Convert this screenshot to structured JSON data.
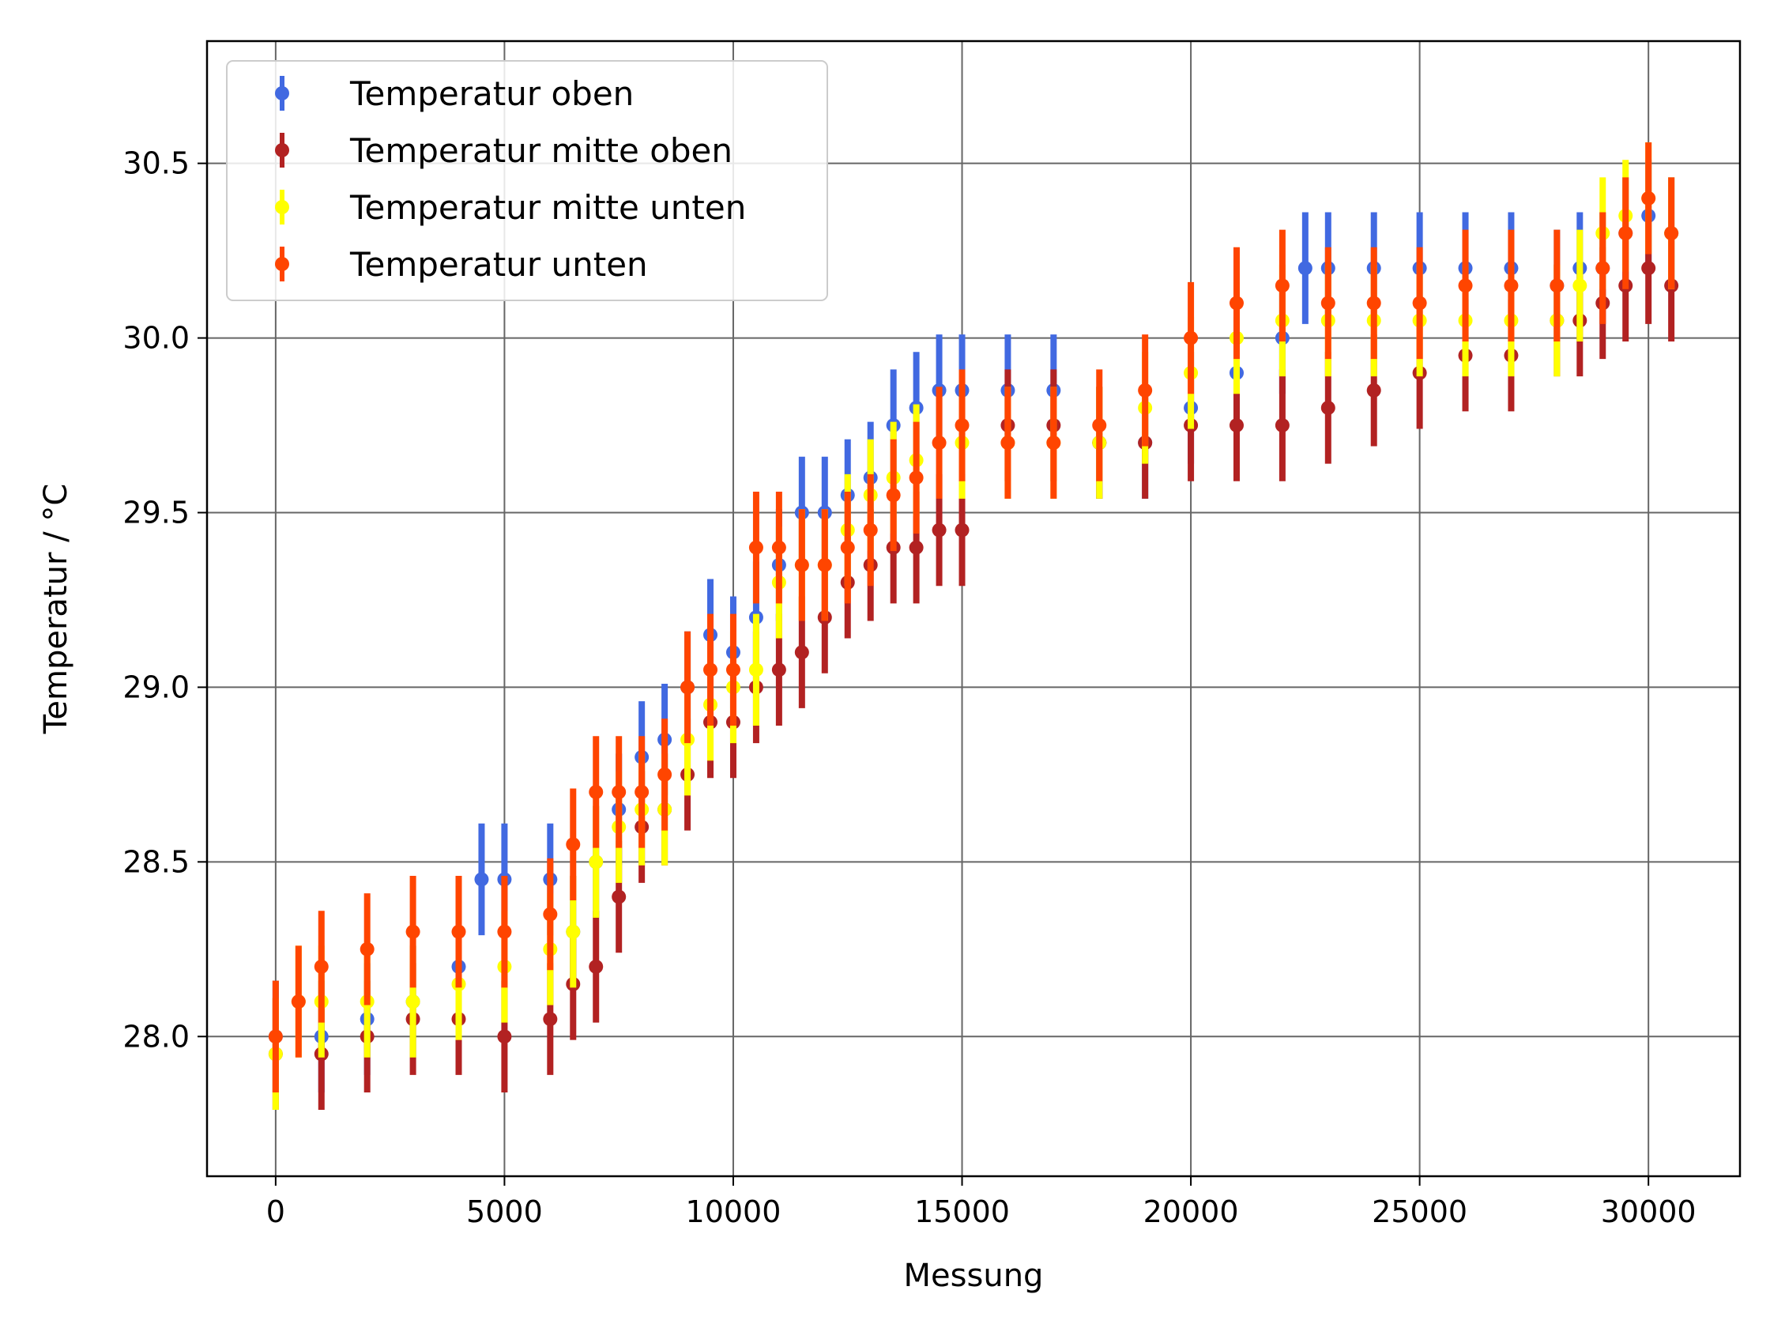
{
  "chart_data": {
    "type": "scatter",
    "title": "",
    "xlabel": "Messung",
    "ylabel": "Temperatur / °C",
    "xlim": [
      -1500,
      32000
    ],
    "ylim": [
      27.6,
      30.85
    ],
    "xticks": [
      0,
      5000,
      10000,
      15000,
      20000,
      25000,
      30000
    ],
    "xtick_labels": [
      "0",
      "5000",
      "10000",
      "15000",
      "20000",
      "25000",
      "30000"
    ],
    "yticks": [
      28.0,
      28.5,
      29.0,
      29.5,
      30.0,
      30.5
    ],
    "ytick_labels": [
      "28.0",
      "28.5",
      "29.0",
      "29.5",
      "30.0",
      "30.5"
    ],
    "grid": true,
    "legend_position": "top-left",
    "error_bar_halfwidth": 0.16,
    "series": [
      {
        "name": "Temperatur oben",
        "color": "#4169e1",
        "x": [
          0,
          1000,
          2000,
          3000,
          4000,
          4500,
          5000,
          6000,
          6500,
          7000,
          7500,
          8000,
          8500,
          9000,
          9500,
          10000,
          10500,
          11000,
          11500,
          12000,
          12500,
          13000,
          13500,
          14000,
          14500,
          15000,
          16000,
          17000,
          18000,
          19000,
          20000,
          21000,
          22000,
          22500,
          23000,
          24000,
          25000,
          26000,
          27000,
          28000,
          28500,
          29000,
          29500,
          30000,
          30500
        ],
        "y": [
          28.0,
          28.0,
          28.05,
          28.1,
          28.2,
          28.45,
          28.45,
          28.45,
          28.3,
          28.5,
          28.65,
          28.8,
          28.85,
          29.0,
          29.15,
          29.1,
          29.2,
          29.35,
          29.5,
          29.5,
          29.55,
          29.6,
          29.75,
          29.8,
          29.85,
          29.85,
          29.85,
          29.85,
          29.7,
          29.7,
          29.8,
          29.9,
          30.0,
          30.2,
          30.2,
          30.2,
          30.2,
          30.2,
          30.2,
          30.15,
          30.2,
          30.2,
          30.3,
          30.35,
          30.3
        ]
      },
      {
        "name": "Temperatur mitte oben",
        "color": "#b22222",
        "x": [
          0,
          1000,
          2000,
          3000,
          4000,
          5000,
          6000,
          6500,
          7000,
          7500,
          8000,
          8500,
          9000,
          9500,
          10000,
          10500,
          11000,
          11500,
          12000,
          12500,
          13000,
          13500,
          14000,
          14500,
          15000,
          16000,
          17000,
          18000,
          19000,
          20000,
          21000,
          22000,
          23000,
          24000,
          25000,
          26000,
          27000,
          28000,
          28500,
          29000,
          29500,
          30000,
          30500
        ],
        "y": [
          27.95,
          27.95,
          28.0,
          28.05,
          28.05,
          28.0,
          28.05,
          28.15,
          28.2,
          28.4,
          28.6,
          28.65,
          28.75,
          28.9,
          28.9,
          29.0,
          29.05,
          29.1,
          29.2,
          29.3,
          29.35,
          29.4,
          29.4,
          29.45,
          29.45,
          29.75,
          29.75,
          29.7,
          29.7,
          29.75,
          29.75,
          29.75,
          29.8,
          29.85,
          29.9,
          29.95,
          29.95,
          30.05,
          30.05,
          30.1,
          30.15,
          30.2,
          30.15
        ]
      },
      {
        "name": "Temperatur mitte unten",
        "color": "#ffff00",
        "x": [
          0,
          500,
          1000,
          2000,
          3000,
          4000,
          5000,
          6000,
          6500,
          7000,
          7500,
          8000,
          8500,
          9000,
          9500,
          10000,
          10500,
          11000,
          11500,
          12000,
          12500,
          13000,
          13500,
          14000,
          15000,
          16000,
          17000,
          18000,
          19000,
          20000,
          21000,
          22000,
          23000,
          24000,
          25000,
          26000,
          27000,
          28000,
          28500,
          29000,
          29500,
          30000,
          30500
        ],
        "y": [
          27.95,
          28.1,
          28.1,
          28.1,
          28.1,
          28.15,
          28.2,
          28.25,
          28.3,
          28.5,
          28.6,
          28.65,
          28.65,
          28.85,
          28.95,
          29.0,
          29.05,
          29.3,
          29.35,
          29.35,
          29.45,
          29.55,
          29.6,
          29.65,
          29.7,
          29.7,
          29.7,
          29.7,
          29.8,
          29.9,
          30.0,
          30.05,
          30.05,
          30.05,
          30.05,
          30.05,
          30.05,
          30.05,
          30.15,
          30.3,
          30.35,
          30.4,
          30.3
        ]
      },
      {
        "name": "Temperatur unten",
        "color": "#ff4500",
        "x": [
          0,
          500,
          1000,
          2000,
          3000,
          4000,
          5000,
          6000,
          6500,
          7000,
          7500,
          8000,
          8500,
          9000,
          9500,
          10000,
          10500,
          11000,
          11500,
          12000,
          12500,
          13000,
          13500,
          14000,
          14500,
          15000,
          16000,
          17000,
          18000,
          19000,
          20000,
          21000,
          22000,
          23000,
          24000,
          25000,
          26000,
          27000,
          28000,
          29000,
          29500,
          30000,
          30500
        ],
        "y": [
          28.0,
          28.1,
          28.2,
          28.25,
          28.3,
          28.3,
          28.3,
          28.35,
          28.55,
          28.7,
          28.7,
          28.7,
          28.75,
          29.0,
          29.05,
          29.05,
          29.4,
          29.4,
          29.35,
          29.35,
          29.4,
          29.45,
          29.55,
          29.6,
          29.7,
          29.75,
          29.7,
          29.7,
          29.75,
          29.85,
          30.0,
          30.1,
          30.15,
          30.1,
          30.1,
          30.1,
          30.15,
          30.15,
          30.15,
          30.2,
          30.3,
          30.4,
          30.3
        ]
      }
    ]
  }
}
